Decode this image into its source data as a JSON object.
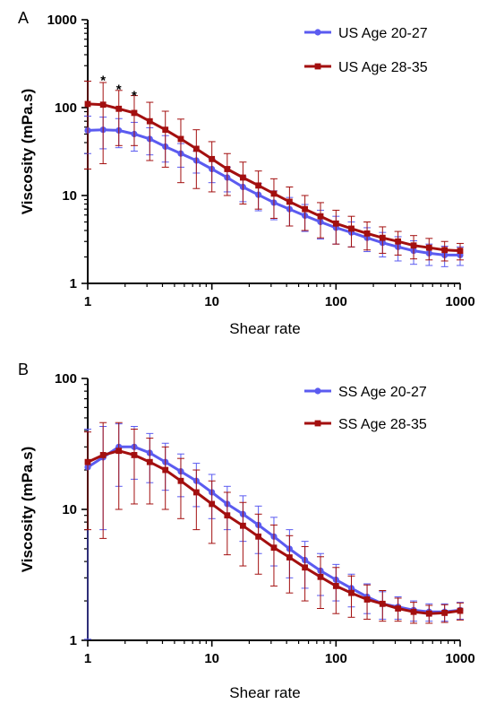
{
  "chart_data": [
    {
      "type": "line",
      "panel_label": "A",
      "xlabel": "Shear rate",
      "ylabel": "Viscosity (mPa.s)",
      "x_scale": "log",
      "y_scale": "log",
      "xlim": [
        1,
        1000
      ],
      "ylim": [
        1,
        1000
      ],
      "x_ticks": [
        "1",
        "10",
        "100",
        "1000"
      ],
      "y_ticks": [
        "1",
        "10",
        "100",
        "1000"
      ],
      "legend_position": "top-right",
      "x": [
        1,
        1.33,
        1.78,
        2.37,
        3.16,
        4.22,
        5.62,
        7.5,
        10,
        13.3,
        17.8,
        23.7,
        31.6,
        42.2,
        56.2,
        75,
        100,
        133,
        178,
        237,
        316,
        422,
        562,
        750,
        1000
      ],
      "series": [
        {
          "name": "US Age 20-27",
          "color": "#5b5bf0",
          "marker": "circle",
          "values": [
            55,
            56,
            55,
            50,
            44,
            36,
            30,
            25,
            20,
            16,
            12.5,
            10.2,
            8.3,
            7,
            5.9,
            5,
            4.3,
            3.8,
            3.3,
            2.9,
            2.6,
            2.35,
            2.2,
            2.1,
            2.1
          ],
          "err": [
            25,
            22,
            20,
            18,
            15,
            12,
            9,
            7,
            6,
            5,
            4,
            3.5,
            3,
            2.5,
            2,
            1.8,
            1.5,
            1.2,
            1.0,
            0.9,
            0.8,
            0.7,
            0.6,
            0.55,
            0.5
          ]
        },
        {
          "name": "US Age 28-35",
          "color": "#a30f0f",
          "marker": "square",
          "values": [
            110,
            108,
            97,
            87,
            70,
            56,
            44,
            34,
            26,
            20,
            16,
            13,
            10.5,
            8.5,
            7,
            5.8,
            4.8,
            4.2,
            3.7,
            3.3,
            3,
            2.7,
            2.55,
            2.4,
            2.35
          ],
          "err": [
            90,
            85,
            60,
            50,
            45,
            35,
            30,
            22,
            15,
            10,
            8,
            6,
            5,
            4,
            3,
            2.5,
            2,
            1.6,
            1.3,
            1.1,
            0.9,
            0.8,
            0.7,
            0.6,
            0.5
          ]
        }
      ],
      "annotations": [
        {
          "text": "*",
          "x": 1.33,
          "y": 210
        },
        {
          "text": "*",
          "x": 1.78,
          "y": 165
        },
        {
          "text": "*",
          "x": 2.37,
          "y": 140
        }
      ]
    },
    {
      "type": "line",
      "panel_label": "B",
      "xlabel": "Shear rate",
      "ylabel": "Viscosity (mPa.s)",
      "x_scale": "log",
      "y_scale": "log",
      "xlim": [
        1,
        1000
      ],
      "ylim": [
        1,
        100
      ],
      "x_ticks": [
        "1",
        "10",
        "100",
        "1000"
      ],
      "y_ticks": [
        "1",
        "10",
        "100"
      ],
      "legend_position": "top-right",
      "x": [
        1,
        1.33,
        1.78,
        2.37,
        3.16,
        4.22,
        5.62,
        7.5,
        10,
        13.3,
        17.8,
        23.7,
        31.6,
        42.2,
        56.2,
        75,
        100,
        133,
        178,
        237,
        316,
        422,
        562,
        750,
        1000
      ],
      "series": [
        {
          "name": "SS Age 20-27",
          "color": "#5b5bf0",
          "marker": "circle",
          "values": [
            21,
            25,
            30,
            30,
            27,
            23,
            19.5,
            16.5,
            13.5,
            11,
            9.2,
            7.6,
            6.2,
            5,
            4.1,
            3.4,
            2.9,
            2.5,
            2.15,
            1.9,
            1.8,
            1.7,
            1.65,
            1.65,
            1.7
          ],
          "err": [
            20,
            18,
            15,
            13,
            11,
            9,
            7,
            6,
            5,
            4,
            3.5,
            3,
            2.5,
            2,
            1.6,
            1.2,
            0.9,
            0.7,
            0.55,
            0.45,
            0.35,
            0.3,
            0.25,
            0.25,
            0.25
          ]
        },
        {
          "name": "SS Age 28-35",
          "color": "#a30f0f",
          "marker": "square",
          "values": [
            23,
            26,
            28,
            26,
            23,
            20,
            16.5,
            13.5,
            11,
            9,
            7.5,
            6.2,
            5.1,
            4.3,
            3.6,
            3.05,
            2.6,
            2.3,
            2.05,
            1.9,
            1.75,
            1.65,
            1.6,
            1.62,
            1.68
          ],
          "err": [
            16,
            20,
            18,
            15,
            12,
            10,
            8,
            6.5,
            5.5,
            4.5,
            3.8,
            3,
            2.5,
            2,
            1.6,
            1.3,
            1.0,
            0.8,
            0.6,
            0.5,
            0.35,
            0.3,
            0.25,
            0.25,
            0.25
          ]
        }
      ],
      "annotations": []
    }
  ]
}
